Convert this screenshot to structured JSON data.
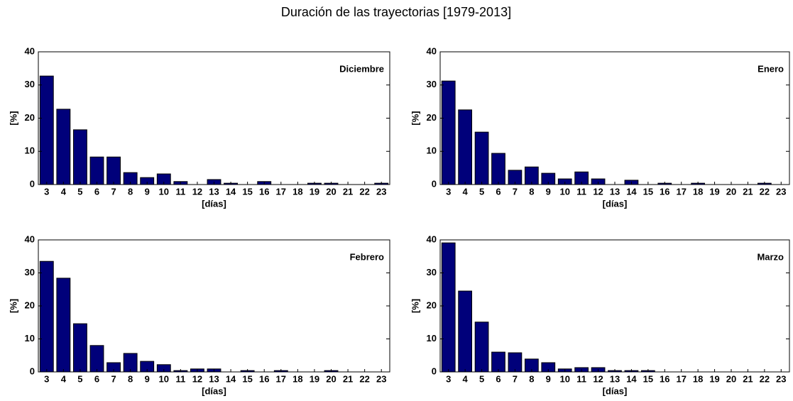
{
  "title": "Duración de las trayectorias [1979-2013]",
  "chart_data": [
    {
      "type": "bar",
      "title": "Diciembre",
      "xlabel": "[días]",
      "ylabel": "[%]",
      "color": "#00007a",
      "categories": [
        3,
        4,
        5,
        6,
        7,
        8,
        9,
        10,
        11,
        12,
        13,
        14,
        15,
        16,
        17,
        18,
        19,
        20,
        21,
        22,
        23
      ],
      "values": [
        32.7,
        22.7,
        16.5,
        8.3,
        8.3,
        3.6,
        2.1,
        3.2,
        0.9,
        0,
        1.5,
        0.4,
        0,
        0.9,
        0,
        0,
        0.4,
        0.4,
        0,
        0,
        0.4
      ],
      "xlim": [
        2.5,
        23.5
      ],
      "ylim": [
        0,
        40
      ],
      "yticks": [
        0,
        10,
        20,
        30,
        40
      ]
    },
    {
      "type": "bar",
      "title": "Enero",
      "xlabel": "[días]",
      "ylabel": "[%]",
      "color": "#00007a",
      "categories": [
        3,
        4,
        5,
        6,
        7,
        8,
        9,
        10,
        11,
        12,
        13,
        14,
        15,
        16,
        17,
        18,
        19,
        20,
        21,
        22,
        23
      ],
      "values": [
        31.2,
        22.5,
        15.8,
        9.4,
        4.3,
        5.3,
        3.4,
        1.7,
        3.8,
        1.7,
        0,
        1.3,
        0,
        0.4,
        0,
        0.4,
        0,
        0,
        0,
        0.4,
        0
      ],
      "xlim": [
        2.5,
        23.5
      ],
      "ylim": [
        0,
        40
      ],
      "yticks": [
        0,
        10,
        20,
        30,
        40
      ]
    },
    {
      "type": "bar",
      "title": "Febrero",
      "xlabel": "[días]",
      "ylabel": "[%]",
      "color": "#00007a",
      "categories": [
        3,
        4,
        5,
        6,
        7,
        8,
        9,
        10,
        11,
        12,
        13,
        14,
        15,
        16,
        17,
        18,
        19,
        20,
        21,
        22,
        23
      ],
      "values": [
        33.5,
        28.4,
        14.6,
        8.0,
        2.8,
        5.6,
        3.2,
        2.2,
        0.4,
        0.9,
        0.9,
        0,
        0.4,
        0,
        0.4,
        0,
        0,
        0.4,
        0,
        0,
        0
      ],
      "xlim": [
        2.5,
        23.5
      ],
      "ylim": [
        0,
        40
      ],
      "yticks": [
        0,
        10,
        20,
        30,
        40
      ]
    },
    {
      "type": "bar",
      "title": "Marzo",
      "xlabel": "[días]",
      "ylabel": "[%]",
      "color": "#00007a",
      "categories": [
        3,
        4,
        5,
        6,
        7,
        8,
        9,
        10,
        11,
        12,
        13,
        14,
        15,
        16,
        17,
        18,
        19,
        20,
        21,
        22,
        23
      ],
      "values": [
        39.1,
        24.5,
        15.1,
        6.0,
        5.8,
        3.9,
        2.8,
        0.9,
        1.3,
        1.3,
        0.4,
        0.4,
        0.4,
        0,
        0,
        0,
        0,
        0,
        0,
        0,
        0
      ],
      "xlim": [
        2.5,
        23.5
      ],
      "ylim": [
        0,
        40
      ],
      "yticks": [
        0,
        10,
        20,
        30,
        40
      ]
    }
  ]
}
